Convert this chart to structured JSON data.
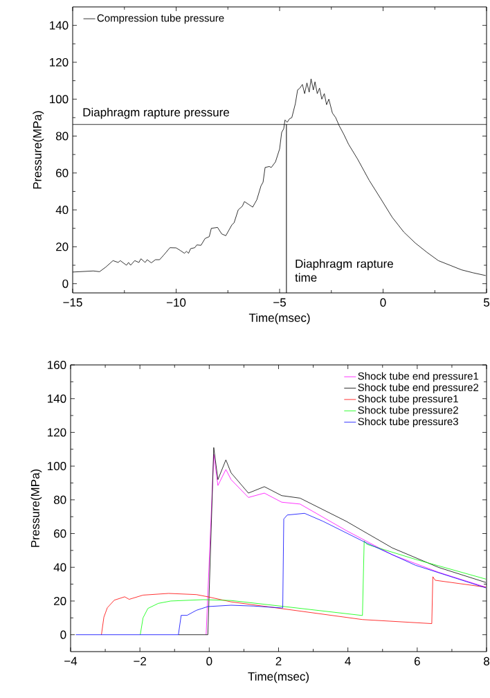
{
  "chart_data": [
    {
      "type": "line",
      "xlabel": "Time(msec)",
      "ylabel": "Pressure(MPa)",
      "xlim": [
        -15,
        5
      ],
      "ylim": [
        -5,
        150
      ],
      "xticks": [
        {
          "value": -15,
          "label": "−15"
        },
        {
          "value": -10,
          "label": "−10"
        },
        {
          "value": -5,
          "label": "−5"
        },
        0,
        5
      ],
      "yticks": [
        0,
        20,
        40,
        60,
        80,
        100,
        120,
        140
      ],
      "grid": false,
      "legend": "top left",
      "marker": "none",
      "line_style": "solid",
      "ref_lines": [
        {
          "axis": "y",
          "value": 86.3,
          "label": "Diaphragm rapture pressure",
          "color": "#000000"
        },
        {
          "axis": "x",
          "value": -4.67,
          "label": "Diaphragm rapture time",
          "color": "#000000"
        }
      ],
      "series": [
        {
          "name": "Compression tube pressure",
          "color": "#000000",
          "x": [
            -15.0,
            -14.0,
            -13.7,
            -13.4,
            -13.05,
            -12.8,
            -12.7,
            -12.4,
            -12.3,
            -12.2,
            -12.0,
            -11.8,
            -11.7,
            -11.5,
            -11.4,
            -11.2,
            -11.0,
            -10.8,
            -10.6,
            -10.3,
            -10.0,
            -9.8,
            -9.6,
            -9.5,
            -9.4,
            -9.3,
            -9.1,
            -9.0,
            -8.8,
            -8.6,
            -8.4,
            -8.3,
            -8.0,
            -7.8,
            -7.6,
            -7.3,
            -7.2,
            -7.0,
            -6.8,
            -6.7,
            -6.5,
            -6.3,
            -6.2,
            -6.1,
            -5.9,
            -5.8,
            -5.7,
            -5.5,
            -5.4,
            -5.2,
            -5.0,
            -4.9,
            -4.8,
            -4.74,
            -4.63,
            -4.52,
            -4.41,
            -4.24,
            -4.13,
            -4.02,
            -3.9,
            -3.79,
            -3.68,
            -3.57,
            -3.48,
            -3.37,
            -3.29,
            -3.18,
            -3.07,
            -2.96,
            -2.84,
            -2.73,
            -2.62,
            -2.45,
            -2.29,
            -2.12,
            -1.9,
            -1.67,
            -1.23,
            -0.67,
            -0.11,
            0.44,
            1.0,
            1.56,
            2.12,
            2.67,
            3.23,
            3.79,
            4.35,
            4.96
          ],
          "values": [
            6.3,
            6.9,
            6.5,
            9,
            12.5,
            11.5,
            12.5,
            10,
            11.5,
            10,
            12.5,
            11.5,
            13.5,
            11.5,
            13,
            11.3,
            13,
            13,
            15.5,
            19.5,
            19.4,
            18,
            16.5,
            17.5,
            16.5,
            19,
            19.5,
            21,
            20.8,
            24.5,
            25.5,
            30,
            30.5,
            27,
            26,
            32,
            33,
            40,
            42,
            44.5,
            43,
            41.5,
            43.5,
            45.5,
            53,
            55,
            63,
            63.5,
            63,
            66,
            73,
            82,
            84,
            88.7,
            87.5,
            89.4,
            90,
            97.5,
            105,
            106,
            108,
            103,
            108.8,
            103.8,
            111,
            105,
            109.4,
            103,
            106,
            100,
            103,
            97,
            100,
            92.5,
            90,
            85.6,
            81,
            75.6,
            67.5,
            56,
            46,
            36,
            28,
            22,
            17,
            12.5,
            10,
            7.5,
            5.9,
            4.4
          ]
        }
      ]
    },
    {
      "type": "line",
      "xlabel": "Time(msec)",
      "ylabel": "Pressure(MPa)",
      "xlim": [
        -4,
        8
      ],
      "ylim": [
        -10,
        160
      ],
      "xticks": [
        {
          "value": -4,
          "label": "−4"
        },
        {
          "value": -2,
          "label": "−2"
        },
        0,
        2,
        4,
        6,
        8
      ],
      "yticks": [
        0,
        20,
        40,
        60,
        80,
        100,
        120,
        140,
        160
      ],
      "grid": false,
      "legend": "top right",
      "marker": "none",
      "line_style": "solid",
      "series": [
        {
          "name": "Shock tube end pressure1",
          "color": "#ff00ff",
          "x": [
            -0.09,
            0.13,
            0.25,
            0.48,
            0.63,
            1.13,
            1.59,
            2.09,
            2.62,
            3.95,
            5.28,
            6.62,
            7.98
          ],
          "values": [
            0,
            107,
            88.5,
            98,
            92,
            81.4,
            84,
            78.6,
            77.5,
            61.8,
            47.4,
            37,
            28.2
          ]
        },
        {
          "name": "Shock tube end pressure2",
          "color": "#000000",
          "x": [
            -0.89,
            -0.04,
            0.13,
            0.25,
            0.48,
            0.63,
            1.13,
            1.59,
            2.09,
            2.62,
            3.95,
            5.28,
            6.62,
            7.98
          ],
          "values": [
            0,
            0,
            111,
            92,
            103.7,
            96,
            84,
            87.8,
            82.5,
            81,
            67.3,
            51.5,
            39.9,
            31
          ]
        },
        {
          "name": "Shock tube pressure1",
          "color": "#ff0000",
          "x": [
            -3.11,
            -3.04,
            -2.94,
            -2.74,
            -2.44,
            -2.31,
            -1.91,
            -1.17,
            -0.37,
            -0.04,
            0.63,
            2.09,
            4.42,
            6.42,
            6.45,
            6.52,
            7.98
          ],
          "values": [
            0,
            10.4,
            16,
            20.5,
            22.5,
            21,
            23.5,
            24.5,
            23.8,
            22.5,
            19.5,
            15.5,
            9,
            6.6,
            34.4,
            32.3,
            28.2
          ]
        },
        {
          "name": "Shock tube pressure2",
          "color": "#00ff00",
          "x": [
            -1.99,
            -1.91,
            -1.77,
            -1.47,
            -1.11,
            -0.17,
            0.63,
            2.09,
            4.42,
            4.47,
            4.55,
            5.95,
            7.98
          ],
          "values": [
            0,
            10,
            15.6,
            18.6,
            20,
            20.8,
            20.3,
            16.9,
            11.4,
            55.6,
            53.6,
            44.7,
            33
          ]
        },
        {
          "name": "Shock tube pressure3",
          "color": "#0000ff",
          "x": [
            -3.85,
            -0.89,
            -0.81,
            -0.64,
            -0.37,
            -0.04,
            0.63,
            1.29,
            2.09,
            2.12,
            2.15,
            2.25,
            2.75,
            3.28,
            4.48,
            5.95,
            7.98
          ],
          "values": [
            0,
            0,
            11.5,
            11.5,
            14.5,
            16.7,
            17.5,
            17,
            15.9,
            15.9,
            68.6,
            71,
            72,
            67.3,
            55,
            41.2,
            27.8
          ]
        }
      ]
    }
  ]
}
